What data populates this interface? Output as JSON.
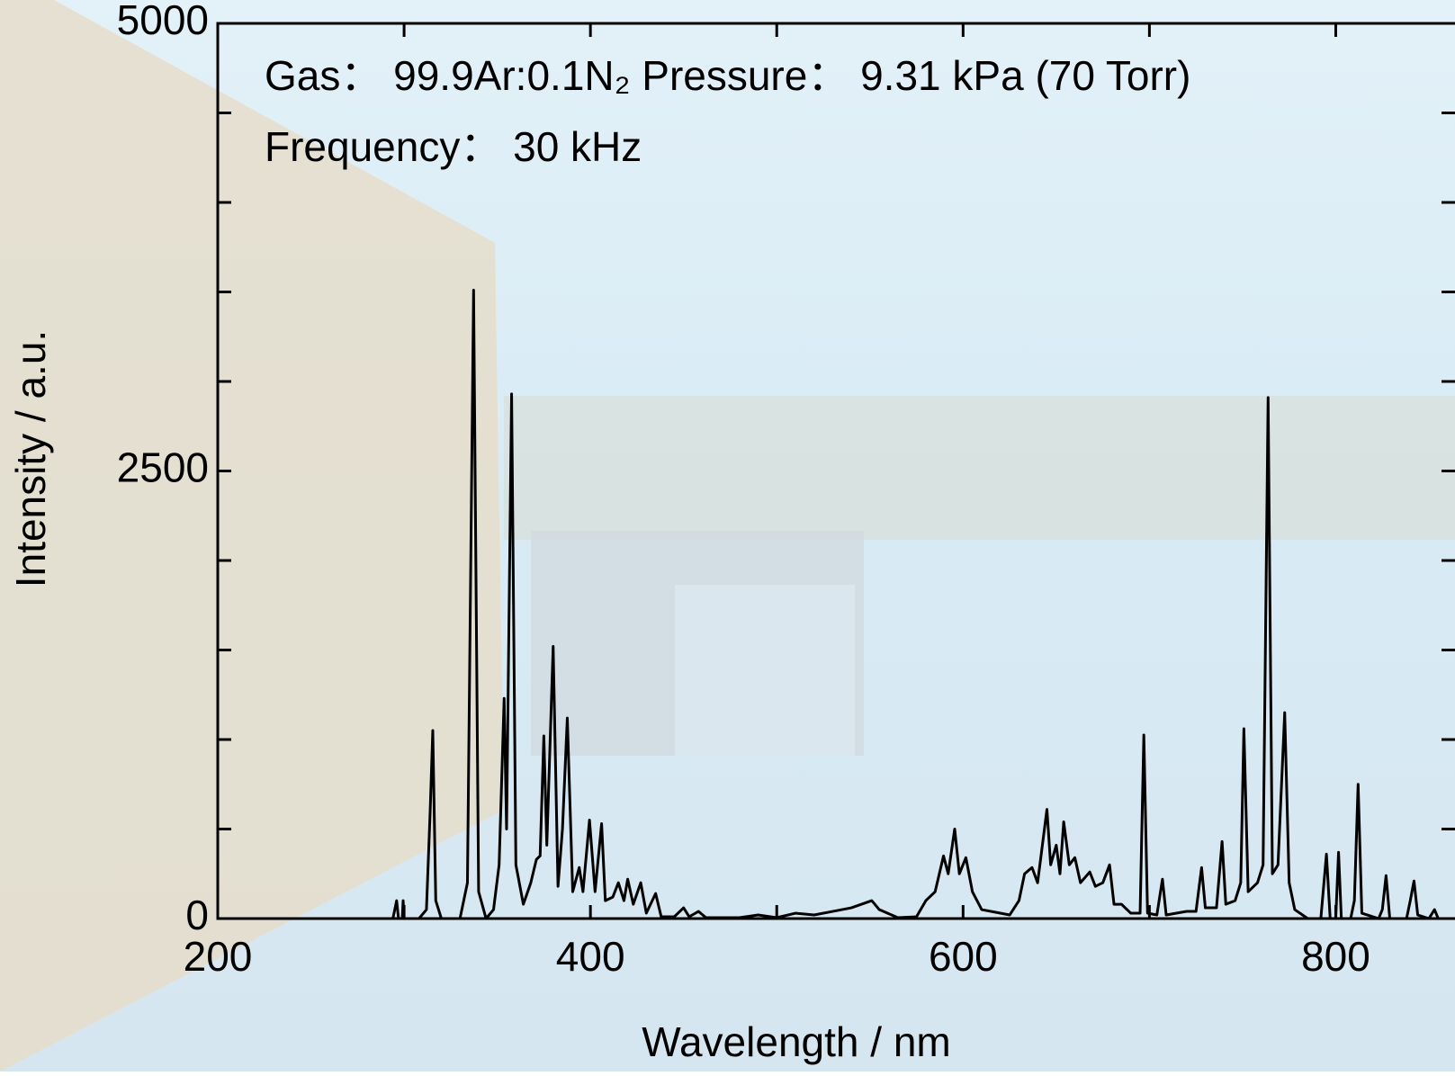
{
  "chart_data": {
    "type": "line",
    "annotations": [
      "Gas：  99.9Ar:0.1N₂  Pressure：  9.31 kPa (70 Torr)",
      "Frequency：  30 kHz"
    ],
    "xlabel": "Wavelength / nm",
    "ylabel": "Intensity / a.u.",
    "color": "#000000",
    "x": [
      200,
      290,
      294,
      296,
      297,
      299,
      299.5,
      300,
      308,
      312,
      314,
      315.4,
      317,
      320,
      330,
      334,
      337.3,
      340,
      344,
      348,
      351,
      353.7,
      355,
      357.7,
      360,
      364,
      368,
      371,
      373,
      375,
      376.6,
      380,
      382.6,
      385,
      387.6,
      390.5,
      394,
      396,
      399.5,
      402.5,
      406,
      408,
      412,
      415,
      418,
      420,
      423,
      427,
      430,
      435,
      438,
      445,
      450,
      453,
      458,
      462,
      480,
      490,
      500,
      510,
      520,
      530,
      540,
      551,
      555,
      565,
      575,
      580,
      585,
      589.5,
      592,
      595.5,
      598,
      601.5,
      605,
      610,
      620,
      625,
      630,
      633,
      637,
      640,
      645,
      647,
      650,
      652,
      654,
      657,
      660,
      663,
      668,
      671,
      675,
      678.6,
      681,
      685,
      690,
      695,
      697,
      699,
      704,
      707,
      709,
      720,
      725,
      728,
      730,
      736,
      739,
      741,
      746,
      749,
      750.7,
      753,
      758,
      761,
      763.7,
      766,
      769,
      772.6,
      775,
      778,
      785,
      792,
      795,
      797,
      800,
      801.5,
      803,
      808,
      810,
      812,
      814,
      823,
      825,
      827,
      829,
      838,
      840,
      842,
      844,
      850,
      853,
      855,
      864
    ],
    "values": [
      0,
      0,
      0,
      100,
      0,
      0,
      100,
      0,
      0,
      50,
      600,
      1050,
      100,
      0,
      0,
      200,
      3510,
      150,
      0,
      50,
      300,
      1230,
      500,
      2930,
      300,
      80,
      200,
      330,
      350,
      1020,
      410,
      1520,
      180,
      500,
      1120,
      150,
      285,
      150,
      550,
      150,
      530,
      100,
      120,
      200,
      100,
      220,
      80,
      200,
      30,
      140,
      10,
      10,
      60,
      10,
      40,
      5,
      5,
      20,
      5,
      30,
      20,
      40,
      60,
      100,
      50,
      5,
      10,
      100,
      150,
      350,
      250,
      500,
      250,
      340,
      150,
      50,
      30,
      20,
      100,
      250,
      285,
      200,
      610,
      300,
      410,
      250,
      540,
      300,
      340,
      200,
      260,
      180,
      200,
      300,
      80,
      80,
      30,
      30,
      1025,
      30,
      20,
      220,
      20,
      40,
      40,
      285,
      60,
      60,
      430,
      80,
      100,
      200,
      1060,
      150,
      200,
      300,
      2910,
      250,
      300,
      1150,
      200,
      50,
      0,
      0,
      360,
      0,
      0,
      370,
      0,
      0,
      100,
      750,
      30,
      0,
      50,
      240,
      0,
      0,
      100,
      210,
      20,
      0,
      50,
      0,
      0
    ],
    "xlim": [
      200,
      864
    ],
    "ylim": [
      0,
      5000
    ],
    "xticks": [
      200,
      400,
      600,
      800
    ],
    "xminor": [
      300,
      500,
      700
    ],
    "yticks": [
      0,
      2500,
      5000
    ],
    "yminor": [
      500,
      1000,
      1500,
      2000,
      3000,
      3500,
      4000,
      4500
    ]
  }
}
